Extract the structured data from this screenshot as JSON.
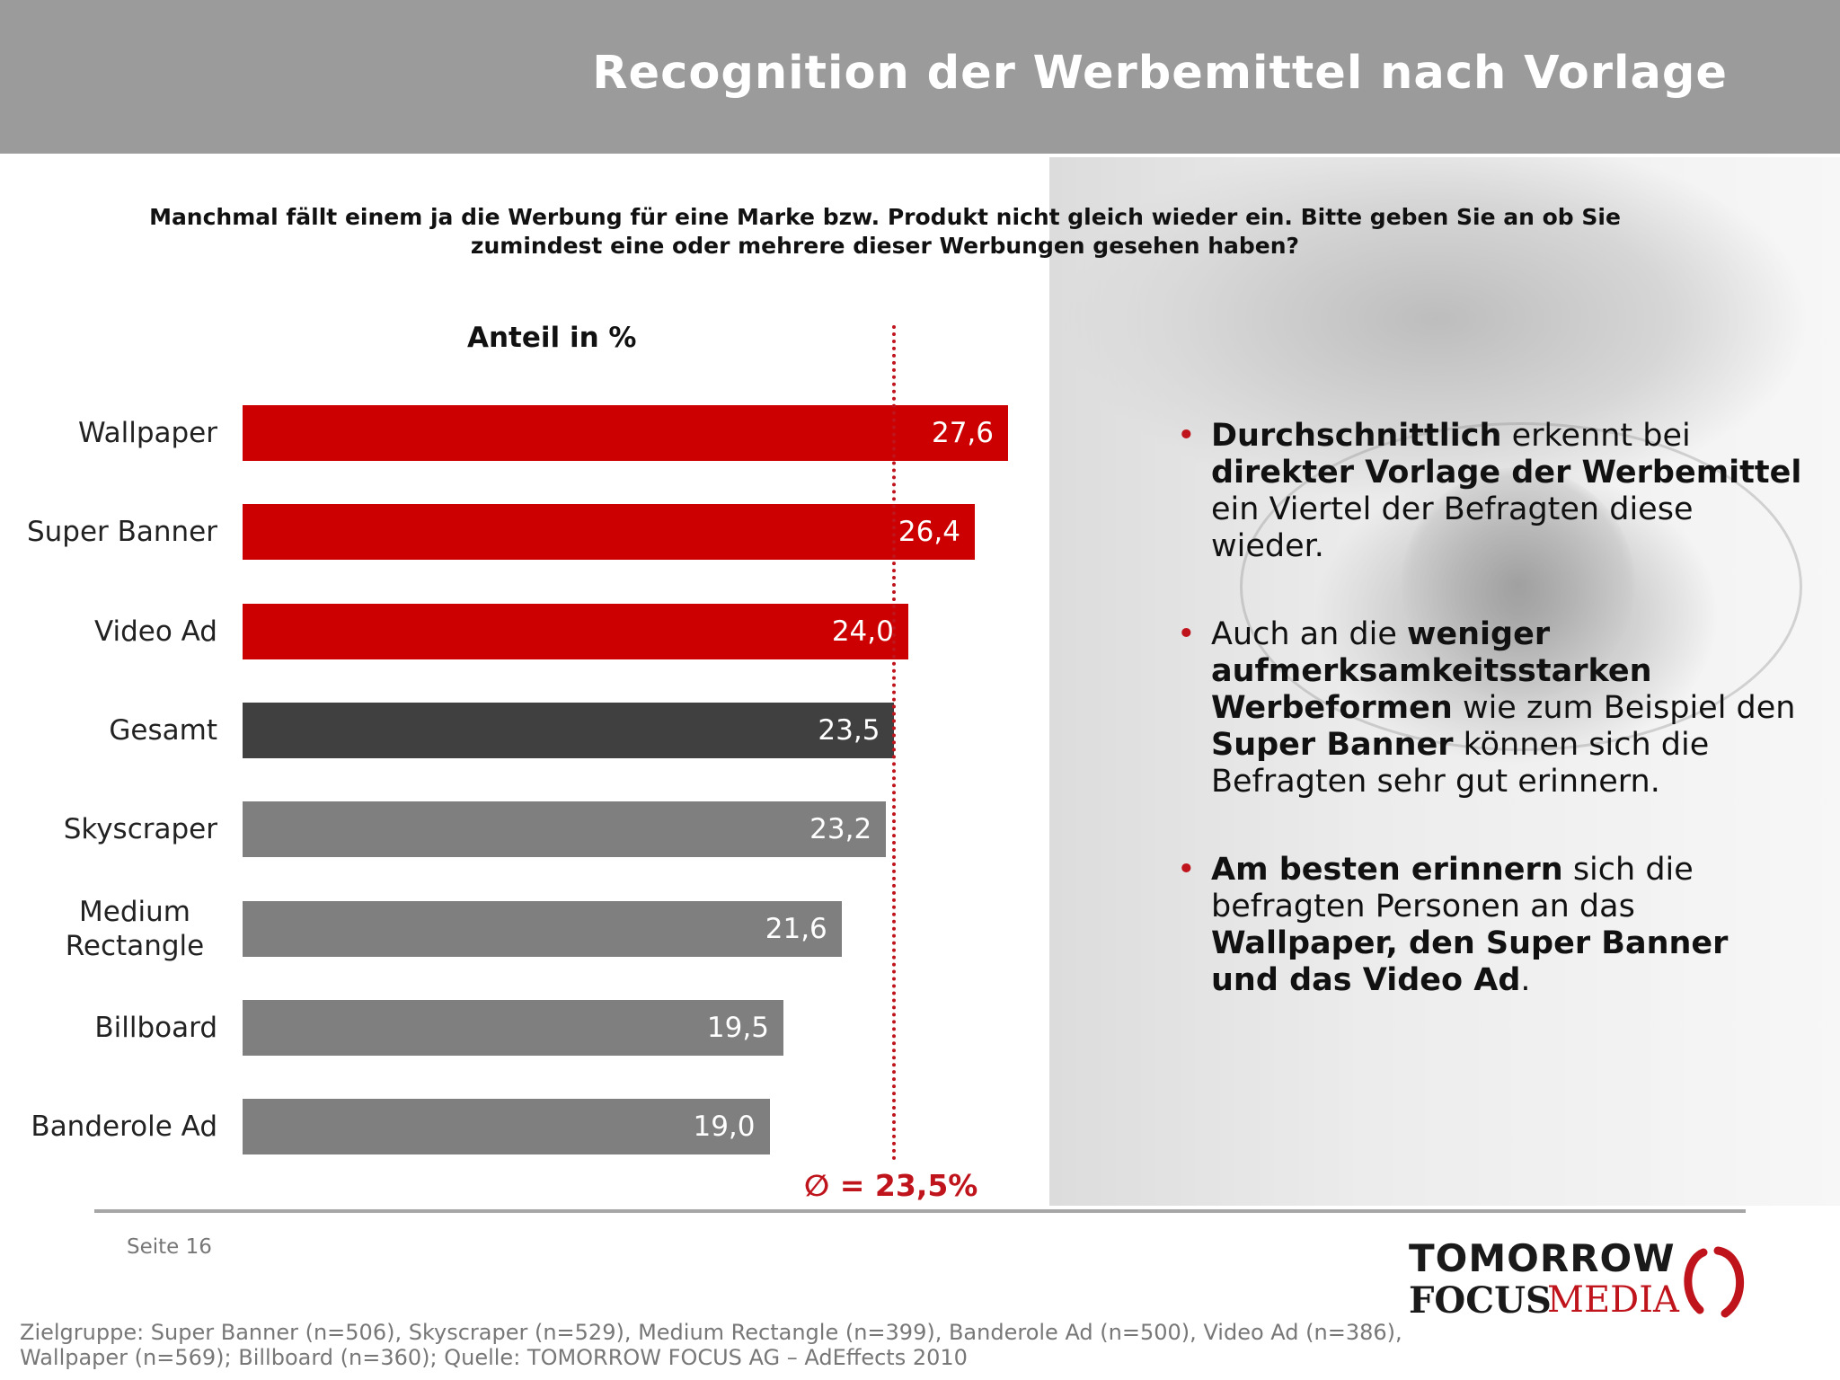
{
  "header": {
    "title": "Recognition der Werbemittel nach Vorlage"
  },
  "question": "Manchmal fällt einem ja die Werbung für eine Marke bzw. Produkt nicht gleich wieder ein. Bitte geben Sie an ob Sie zumindest eine oder mehrere dieser Werbungen gesehen haben?",
  "chart_data": {
    "type": "bar",
    "orientation": "horizontal",
    "title": "Anteil in %",
    "categories": [
      "Wallpaper",
      "Super Banner",
      "Video Ad",
      "Gesamt",
      "Skyscraper",
      "Medium Rectangle",
      "Billboard",
      "Banderole Ad"
    ],
    "values": [
      27.6,
      26.4,
      24.0,
      23.5,
      23.2,
      21.6,
      19.5,
      19.0
    ],
    "value_labels": [
      "27,6",
      "26,4",
      "24,0",
      "23,5",
      "23,2",
      "21,6",
      "19,5",
      "19,0"
    ],
    "bar_colors": [
      "#cc0000",
      "#cc0000",
      "#cc0000",
      "#404040",
      "#7f7f7f",
      "#7f7f7f",
      "#7f7f7f",
      "#7f7f7f"
    ],
    "reference_line": {
      "value": 23.5,
      "label": "∅ = 23,5%",
      "color": "#c0141c",
      "style": "dotted"
    },
    "xlim": [
      0,
      27.6
    ],
    "grid": false,
    "legend": "none"
  },
  "bullets": [
    [
      {
        "t": "Durchschnittlich",
        "b": true
      },
      {
        "t": " erkennt bei ",
        "b": false
      },
      {
        "t": "direkter Vorlage der Werbemittel",
        "b": true
      },
      {
        "t": " ein Viertel der Befragten diese wieder.",
        "b": false
      }
    ],
    [
      {
        "t": "Auch an die ",
        "b": false
      },
      {
        "t": "weniger aufmerksamkeitsstarken Werbeformen",
        "b": true
      },
      {
        "t": " wie zum Beispiel den ",
        "b": false
      },
      {
        "t": "Super Banner",
        "b": true
      },
      {
        "t": " können sich die Befragten sehr gut erinnern.",
        "b": false
      }
    ],
    [
      {
        "t": "Am besten erinnern",
        "b": true
      },
      {
        "t": " sich die befragten Personen an das ",
        "b": false
      },
      {
        "t": "Wallpaper, den Super Banner und das Video Ad",
        "b": true
      },
      {
        "t": ".",
        "b": false
      }
    ]
  ],
  "bullet_symbol": "•",
  "footer": {
    "page": "Seite 16",
    "logo_line1": "TOMORROW",
    "logo_line2a": "FOCUS",
    "logo_line2b": "MEDIA",
    "note": "Zielgruppe: Super Banner (n=506), Skyscraper (n=529), Medium Rectangle (n=399), Banderole Ad (n=500), Video Ad (n=386), Wallpaper (n=569); Billboard (n=360); Quelle: TOMORROW FOCUS AG – AdEffects 2010"
  },
  "colors": {
    "accent": "#c0141c",
    "header_bg": "#9b9b9b"
  }
}
